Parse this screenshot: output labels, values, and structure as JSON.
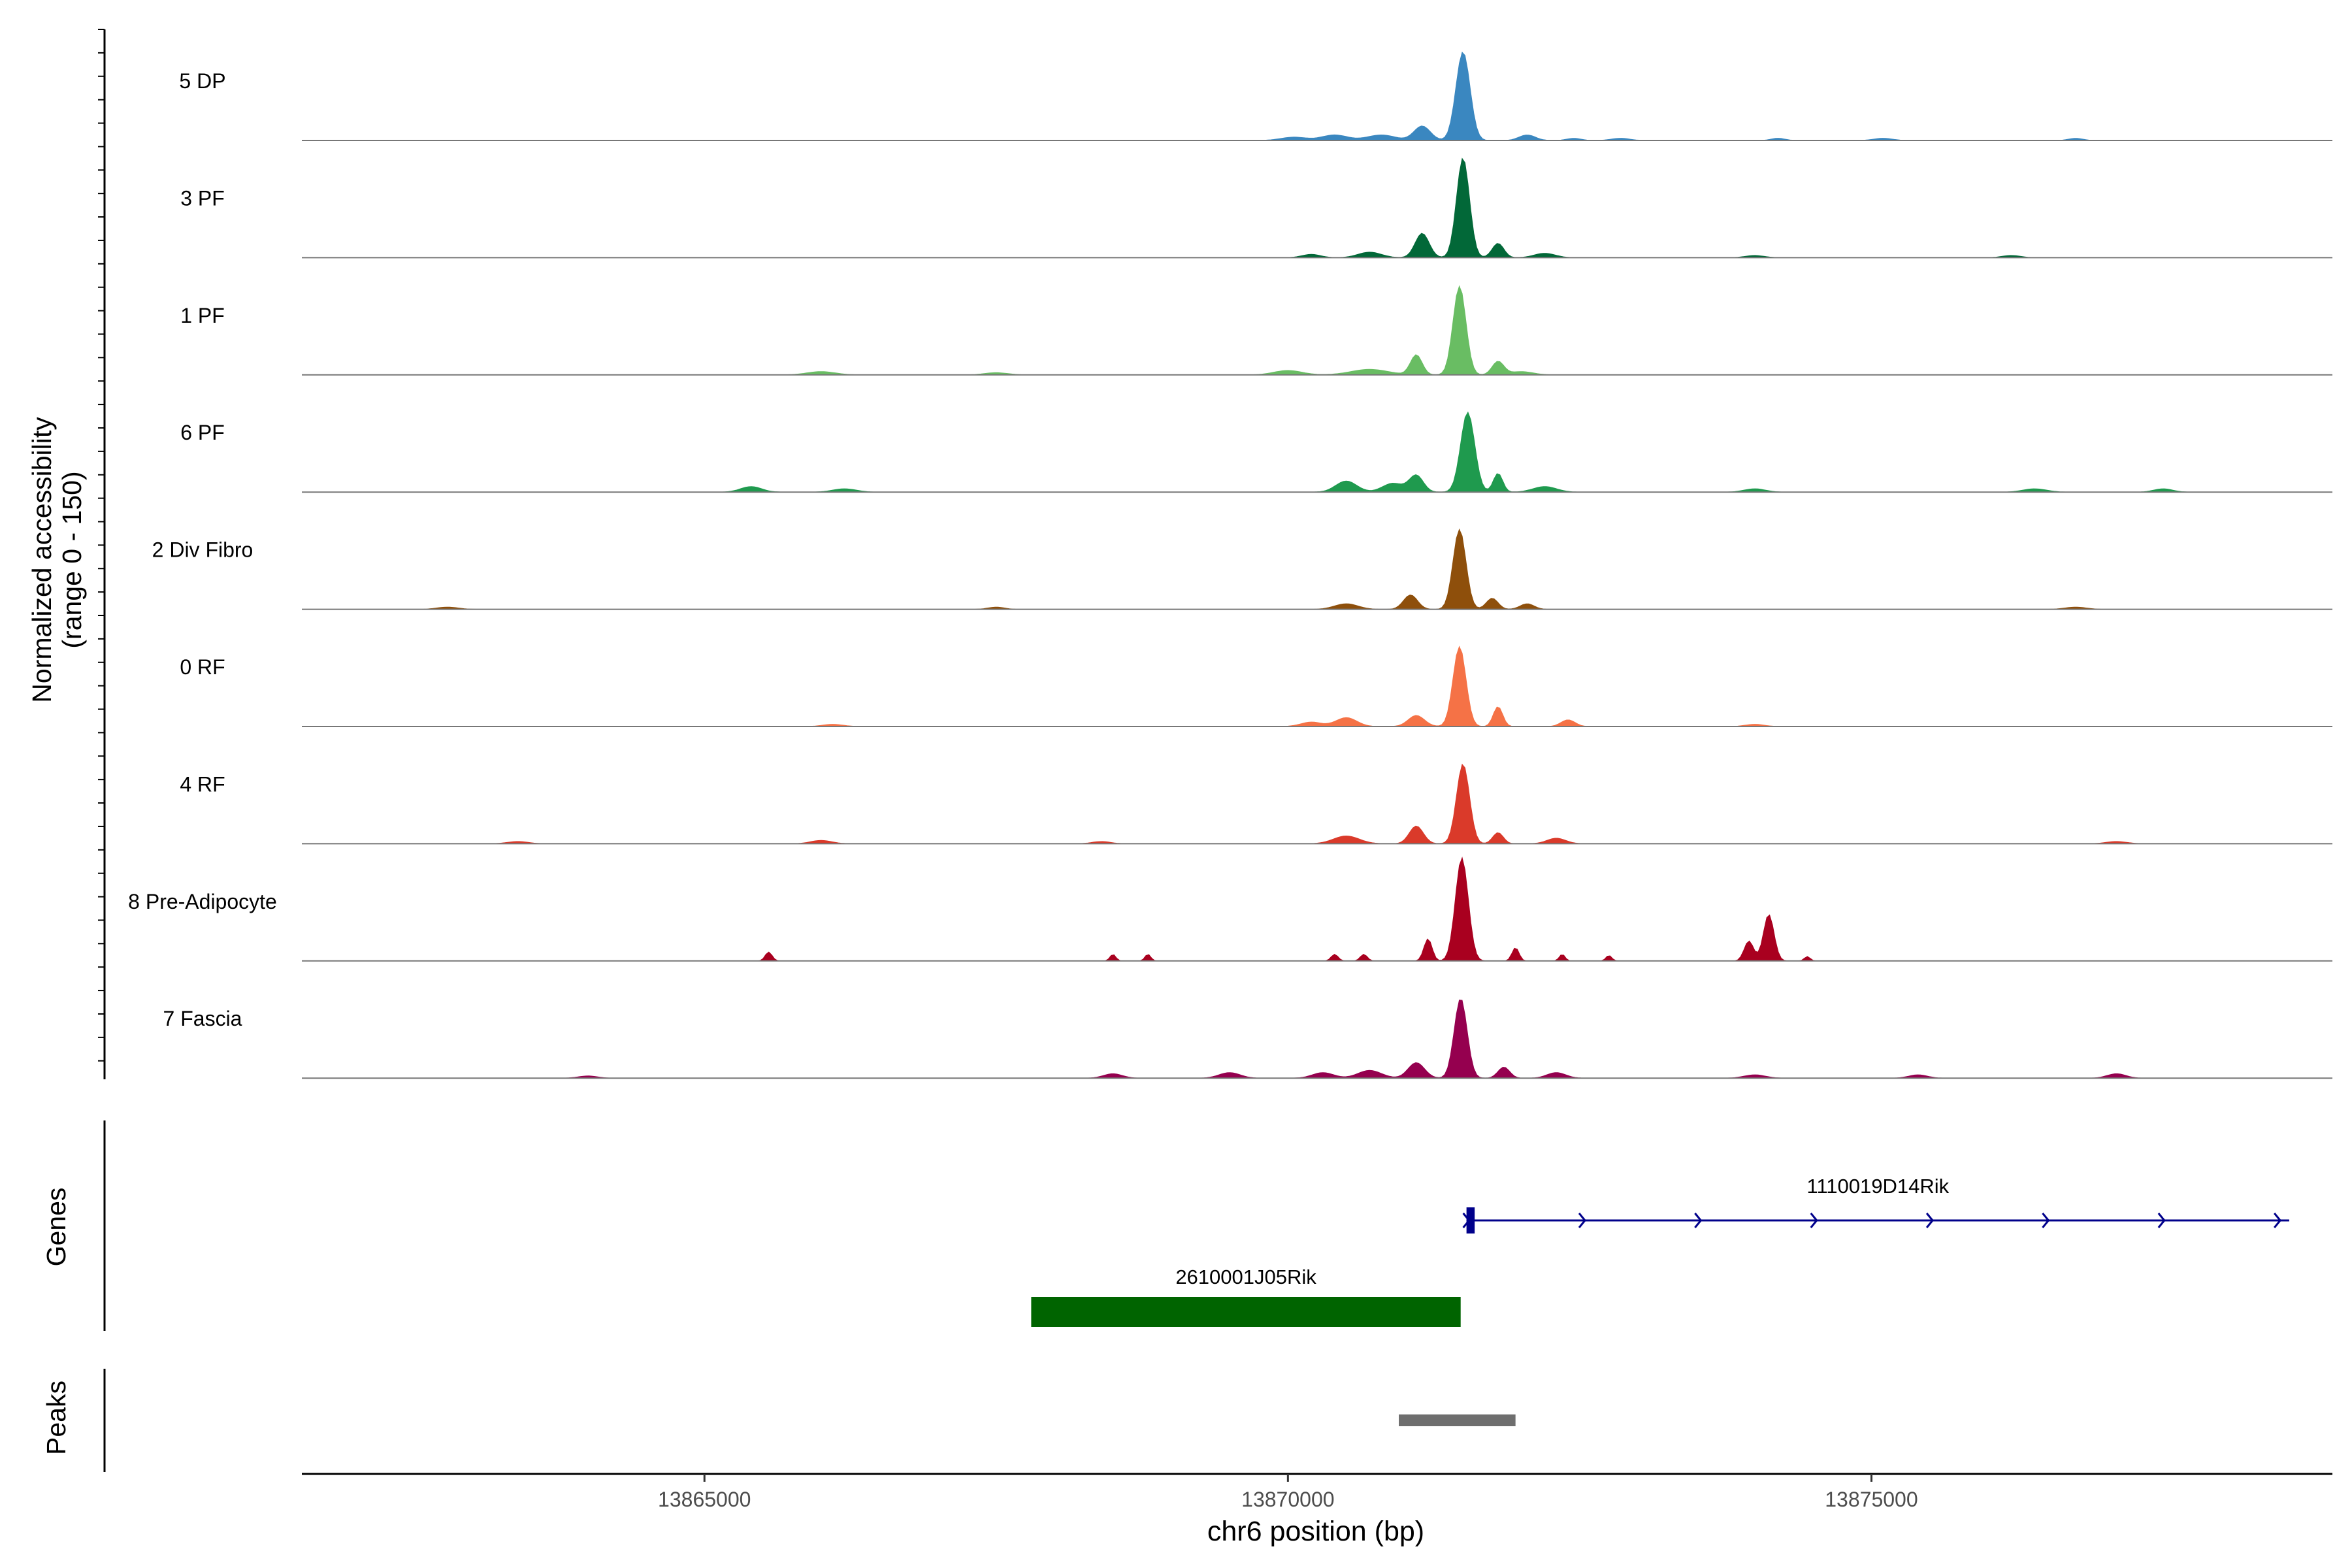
{
  "chart_data": {
    "type": "area",
    "title": "",
    "ylabel_line1": "Normalized accessibility",
    "ylabel_line2": "(range 0 - 150)",
    "xlabel": "chr6 position (bp)",
    "xlim": [
      13861550,
      13878950
    ],
    "ylim": [
      0,
      150
    ],
    "x_ticks": [
      13865000,
      13870000,
      13875000
    ],
    "x_tick_labels": [
      "13865000",
      "13870000",
      "13875000"
    ],
    "genes_label": "Genes",
    "peaks_label": "Peaks",
    "tracks": [
      {
        "name": "5 DP",
        "color": "#3a87c0",
        "peaks": [
          [
            13871500,
            0.8,
            60
          ],
          [
            13871150,
            0.13,
            70
          ],
          [
            13870800,
            0.05,
            120
          ],
          [
            13870400,
            0.05,
            110
          ],
          [
            13870050,
            0.03,
            110
          ],
          [
            13872050,
            0.05,
            70
          ],
          [
            13872450,
            0.02,
            60
          ],
          [
            13872850,
            0.02,
            80
          ],
          [
            13874200,
            0.02,
            60
          ],
          [
            13875100,
            0.02,
            80
          ],
          [
            13876750,
            0.02,
            60
          ]
        ]
      },
      {
        "name": "3 PF",
        "color": "#026838",
        "peaks": [
          [
            13871500,
            0.9,
            55
          ],
          [
            13871150,
            0.22,
            60
          ],
          [
            13871800,
            0.13,
            50
          ],
          [
            13870700,
            0.05,
            100
          ],
          [
            13870200,
            0.03,
            80
          ],
          [
            13872200,
            0.04,
            90
          ],
          [
            13874000,
            0.02,
            80
          ],
          [
            13876200,
            0.02,
            80
          ]
        ]
      },
      {
        "name": "1 PF",
        "color": "#69bd63",
        "peaks": [
          [
            13871470,
            0.8,
            55
          ],
          [
            13871100,
            0.18,
            50
          ],
          [
            13871800,
            0.12,
            50
          ],
          [
            13870700,
            0.05,
            160
          ],
          [
            13870000,
            0.04,
            120
          ],
          [
            13872000,
            0.03,
            100
          ],
          [
            13866000,
            0.03,
            120
          ],
          [
            13867500,
            0.02,
            100
          ]
        ]
      },
      {
        "name": "6 PF",
        "color": "#1f9a4e",
        "peaks": [
          [
            13871540,
            0.72,
            60
          ],
          [
            13871100,
            0.15,
            60
          ],
          [
            13871800,
            0.17,
            40
          ],
          [
            13870500,
            0.1,
            90
          ],
          [
            13870900,
            0.08,
            90
          ],
          [
            13872200,
            0.05,
            100
          ],
          [
            13865400,
            0.05,
            90
          ],
          [
            13866200,
            0.03,
            100
          ],
          [
            13874000,
            0.03,
            90
          ],
          [
            13876400,
            0.03,
            100
          ],
          [
            13877500,
            0.03,
            80
          ]
        ]
      },
      {
        "name": "2 Div Fibro",
        "color": "#8e4f0b",
        "peaks": [
          [
            13871470,
            0.72,
            55
          ],
          [
            13871050,
            0.13,
            60
          ],
          [
            13871750,
            0.1,
            50
          ],
          [
            13870500,
            0.05,
            100
          ],
          [
            13872050,
            0.05,
            60
          ],
          [
            13867500,
            0.02,
            70
          ],
          [
            13876750,
            0.02,
            90
          ],
          [
            13862800,
            0.02,
            90
          ]
        ]
      },
      {
        "name": "0 RF",
        "color": "#f57246",
        "peaks": [
          [
            13871470,
            0.72,
            55
          ],
          [
            13871100,
            0.1,
            70
          ],
          [
            13871800,
            0.18,
            40
          ],
          [
            13870500,
            0.08,
            90
          ],
          [
            13870200,
            0.04,
            90
          ],
          [
            13872400,
            0.06,
            60
          ],
          [
            13874000,
            0.02,
            80
          ],
          [
            13866100,
            0.02,
            90
          ]
        ]
      },
      {
        "name": "4 RF",
        "color": "#da3a2a",
        "peaks": [
          [
            13871500,
            0.72,
            55
          ],
          [
            13871100,
            0.16,
            60
          ],
          [
            13871800,
            0.1,
            45
          ],
          [
            13870500,
            0.07,
            110
          ],
          [
            13872300,
            0.05,
            80
          ],
          [
            13866000,
            0.03,
            90
          ],
          [
            13863400,
            0.02,
            90
          ],
          [
            13877100,
            0.02,
            90
          ],
          [
            13868400,
            0.02,
            80
          ]
        ]
      },
      {
        "name": "8 Pre-Adipocyte",
        "color": "#a9001f",
        "peaks": [
          [
            13871490,
            0.93,
            55
          ],
          [
            13871200,
            0.2,
            35
          ],
          [
            13874120,
            0.42,
            45
          ],
          [
            13873950,
            0.18,
            40
          ],
          [
            13865550,
            0.08,
            30
          ],
          [
            13868500,
            0.06,
            25
          ],
          [
            13868800,
            0.06,
            25
          ],
          [
            13870400,
            0.06,
            30
          ],
          [
            13870650,
            0.06,
            30
          ],
          [
            13871950,
            0.12,
            30
          ],
          [
            13872350,
            0.06,
            25
          ],
          [
            13872750,
            0.05,
            25
          ],
          [
            13874450,
            0.04,
            25
          ]
        ]
      },
      {
        "name": "7 Fascia",
        "color": "#95004f",
        "peaks": [
          [
            13871480,
            0.72,
            55
          ],
          [
            13871100,
            0.14,
            70
          ],
          [
            13870700,
            0.07,
            100
          ],
          [
            13870300,
            0.05,
            90
          ],
          [
            13871850,
            0.1,
            50
          ],
          [
            13872300,
            0.05,
            80
          ],
          [
            13869500,
            0.05,
            90
          ],
          [
            13868500,
            0.04,
            80
          ],
          [
            13874000,
            0.03,
            90
          ],
          [
            13875400,
            0.03,
            80
          ],
          [
            13877100,
            0.04,
            80
          ],
          [
            13864000,
            0.02,
            80
          ]
        ]
      }
    ],
    "genes": [
      {
        "name": "1110019D14Rik",
        "color": "#00008b",
        "start": 13871530,
        "end": 13878580,
        "strand": "+",
        "exons": [
          [
            13871530,
            13871600
          ]
        ]
      },
      {
        "name": "2610001J05Rik",
        "color": "#006400",
        "start": 13867800,
        "end": 13871480,
        "strand": "",
        "exons": [
          [
            13867800,
            13871480
          ]
        ]
      }
    ],
    "peak_regions": [
      {
        "start": 13870950,
        "end": 13871950,
        "color": "#6e6e6e"
      }
    ]
  }
}
